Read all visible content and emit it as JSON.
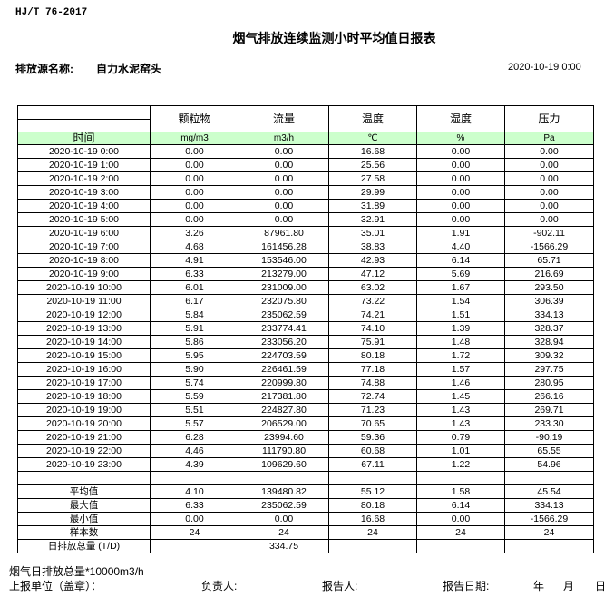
{
  "standard": "HJ/T  76-2017",
  "title": "烟气排放连续监测小时平均值日报表",
  "source": {
    "label": "排放源名称:",
    "value": "自力水泥窑头"
  },
  "report_datetime": "2020-10-19 0:00",
  "table": {
    "columns": [
      "颗粒物",
      "流量",
      "温度",
      "湿度",
      "压力"
    ],
    "time_header": "时间",
    "units": [
      "mg/m3",
      "m3/h",
      "℃",
      "%",
      "Pa"
    ],
    "rows": [
      [
        "2020-10-19 0:00",
        "0.00",
        "0.00",
        "16.68",
        "0.00",
        "0.00"
      ],
      [
        "2020-10-19 1:00",
        "0.00",
        "0.00",
        "25.56",
        "0.00",
        "0.00"
      ],
      [
        "2020-10-19 2:00",
        "0.00",
        "0.00",
        "27.58",
        "0.00",
        "0.00"
      ],
      [
        "2020-10-19 3:00",
        "0.00",
        "0.00",
        "29.99",
        "0.00",
        "0.00"
      ],
      [
        "2020-10-19 4:00",
        "0.00",
        "0.00",
        "31.89",
        "0.00",
        "0.00"
      ],
      [
        "2020-10-19 5:00",
        "0.00",
        "0.00",
        "32.91",
        "0.00",
        "0.00"
      ],
      [
        "2020-10-19 6:00",
        "3.26",
        "87961.80",
        "35.01",
        "1.91",
        "-902.11"
      ],
      [
        "2020-10-19 7:00",
        "4.68",
        "161456.28",
        "38.83",
        "4.40",
        "-1566.29"
      ],
      [
        "2020-10-19 8:00",
        "4.91",
        "153546.00",
        "42.93",
        "6.14",
        "65.71"
      ],
      [
        "2020-10-19 9:00",
        "6.33",
        "213279.00",
        "47.12",
        "5.69",
        "216.69"
      ],
      [
        "2020-10-19 10:00",
        "6.01",
        "231009.00",
        "63.02",
        "1.67",
        "293.50"
      ],
      [
        "2020-10-19 11:00",
        "6.17",
        "232075.80",
        "73.22",
        "1.54",
        "306.39"
      ],
      [
        "2020-10-19 12:00",
        "5.84",
        "235062.59",
        "74.21",
        "1.51",
        "334.13"
      ],
      [
        "2020-10-19 13:00",
        "5.91",
        "233774.41",
        "74.10",
        "1.39",
        "328.37"
      ],
      [
        "2020-10-19 14:00",
        "5.86",
        "233056.20",
        "75.91",
        "1.48",
        "328.94"
      ],
      [
        "2020-10-19 15:00",
        "5.95",
        "224703.59",
        "80.18",
        "1.72",
        "309.32"
      ],
      [
        "2020-10-19 16:00",
        "5.90",
        "226461.59",
        "77.18",
        "1.57",
        "297.75"
      ],
      [
        "2020-10-19 17:00",
        "5.74",
        "220999.80",
        "74.88",
        "1.46",
        "280.95"
      ],
      [
        "2020-10-19 18:00",
        "5.59",
        "217381.80",
        "72.74",
        "1.45",
        "266.16"
      ],
      [
        "2020-10-19 19:00",
        "5.51",
        "224827.80",
        "71.23",
        "1.43",
        "269.71"
      ],
      [
        "2020-10-19 20:00",
        "5.57",
        "206529.00",
        "70.65",
        "1.43",
        "233.30"
      ],
      [
        "2020-10-19 21:00",
        "6.28",
        "23994.60",
        "59.36",
        "0.79",
        "-90.19"
      ],
      [
        "2020-10-19 22:00",
        "4.46",
        "111790.80",
        "60.68",
        "1.01",
        "65.55"
      ],
      [
        "2020-10-19 23:00",
        "4.39",
        "109629.60",
        "67.11",
        "1.22",
        "54.96"
      ]
    ],
    "stats": [
      [
        "平均值",
        "4.10",
        "139480.82",
        "55.12",
        "1.58",
        "45.54"
      ],
      [
        "最大值",
        "6.33",
        "235062.59",
        "80.18",
        "6.14",
        "334.13"
      ],
      [
        "最小值",
        "0.00",
        "0.00",
        "16.68",
        "0.00",
        "-1566.29"
      ],
      [
        "样本数",
        "24",
        "24",
        "24",
        "24",
        "24"
      ],
      [
        "日排放总量 (T/D)",
        "",
        "334.75",
        "",
        "",
        ""
      ]
    ]
  },
  "footer": {
    "note": "烟气日排放总量*10000m3/h",
    "unit_label": "上报单位（盖章）：",
    "responsible_label": "负责人:",
    "reporter_label": "报告人:",
    "report_date_label": "报告日期:",
    "year": "年",
    "month": "月",
    "day": "日"
  }
}
